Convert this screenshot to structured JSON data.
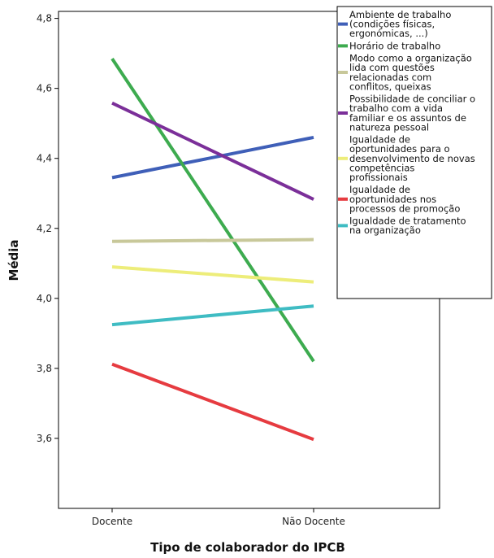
{
  "chart_data": {
    "type": "line",
    "title": "",
    "xlabel": "Tipo de colaborador do IPCB",
    "ylabel": "Média",
    "categories": [
      "Docente",
      "Não Docente"
    ],
    "ylim": [
      3.4,
      4.82
    ],
    "yticks": [
      "3,6",
      "3,8",
      "4,0",
      "4,2",
      "4,4",
      "4,6",
      "4,8"
    ],
    "ytick_values": [
      3.6,
      3.8,
      4.0,
      4.2,
      4.4,
      4.6,
      4.8
    ],
    "grid": false,
    "legend_position": "top-right",
    "series": [
      {
        "name": "Ambiente de trabalho (condições físicas, ergonómicas, ...)",
        "legend_lines": [
          "Ambiente de trabalho",
          "(condições físicas,",
          "ergonómicas, ...)"
        ],
        "color": "#3f5fb8",
        "values": [
          4.345,
          4.46
        ]
      },
      {
        "name": "Horário de trabalho",
        "legend_lines": [
          "Horário de trabalho"
        ],
        "color": "#3dab4f",
        "values": [
          4.685,
          3.82
        ]
      },
      {
        "name": "Modo como a organização lida com questões relacionadas com conflitos, queixas",
        "legend_lines": [
          "Modo como a organização",
          "lida com questões",
          "relacionadas com",
          "conflitos, queixas"
        ],
        "color": "#c8c89a",
        "values": [
          4.163,
          4.168
        ]
      },
      {
        "name": "Possibilidade de conciliar o trabalho com a vida familiar e os assuntos de natureza pessoal",
        "legend_lines": [
          "Possibilidade de conciliar o",
          "trabalho com a vida",
          "familiar e os assuntos de",
          "natureza pessoal"
        ],
        "color": "#7b2f99",
        "values": [
          4.558,
          4.283
        ]
      },
      {
        "name": "Igualdade de oportunidades para o desenvolvimento de novas competências profissionais",
        "legend_lines": [
          "Igualdade de",
          "oportunidades para o",
          "desenvolvimento de novas",
          "competências",
          "profissionais"
        ],
        "color": "#eded7a",
        "values": [
          4.09,
          4.047
        ]
      },
      {
        "name": "Igualdade de oportunidades nos processos de promoção",
        "legend_lines": [
          "Igualdade de",
          "oportunidades nos",
          "processos de promoção"
        ],
        "color": "#e63b40",
        "values": [
          3.812,
          3.597
        ]
      },
      {
        "name": "Igualdade de tratamento na organização",
        "legend_lines": [
          "Igualdade de tratamento",
          "na organização"
        ],
        "color": "#3fbcc3",
        "values": [
          3.925,
          3.978
        ]
      }
    ]
  }
}
